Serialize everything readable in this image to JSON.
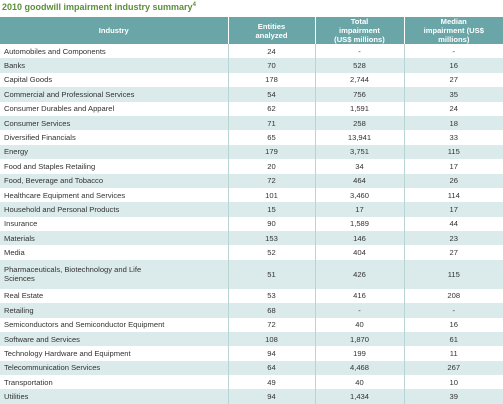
{
  "header": {
    "title": "2010 goodwill impairment industry summary",
    "footnote": "4"
  },
  "table": {
    "columns": [
      "Industry",
      "Entities analyzed",
      "Total impairment (US$ millions)",
      "Median impairment (US$ millions)"
    ],
    "rows": [
      [
        "Automobiles and Components",
        "24",
        "-",
        "-"
      ],
      [
        "Banks",
        "70",
        "528",
        "16"
      ],
      [
        "Capital Goods",
        "178",
        "2,744",
        "27"
      ],
      [
        "Commercial and Professional Services",
        "54",
        "756",
        "35"
      ],
      [
        "Consumer Durables and Apparel",
        "62",
        "1,591",
        "24"
      ],
      [
        "Consumer Services",
        "71",
        "258",
        "18"
      ],
      [
        "Diversified Financials",
        "65",
        "13,941",
        "33"
      ],
      [
        "Energy",
        "179",
        "3,751",
        "115"
      ],
      [
        "Food and Staples Retailing",
        "20",
        "34",
        "17"
      ],
      [
        "Food, Beverage and Tobacco",
        "72",
        "464",
        "26"
      ],
      [
        "Healthcare Equipment and Services",
        "101",
        "3,460",
        "114"
      ],
      [
        "Household and Personal Products",
        "15",
        "17",
        "17"
      ],
      [
        "Insurance",
        "90",
        "1,589",
        "44"
      ],
      [
        "Materials",
        "153",
        "146",
        "23"
      ],
      [
        "Media",
        "52",
        "404",
        "27"
      ],
      [
        "Pharmaceuticals, Biotechnology and Life Sciences",
        "51",
        "426",
        "115"
      ],
      [
        "Real Estate",
        "53",
        "416",
        "208"
      ],
      [
        "Retailing",
        "68",
        "-",
        "-"
      ],
      [
        "Semiconductors and Semiconductor Equipment",
        "72",
        "40",
        "16"
      ],
      [
        "Software and Services",
        "108",
        "1,870",
        "61"
      ],
      [
        "Technology Hardware and Equipment",
        "94",
        "199",
        "11"
      ],
      [
        "Telecommunication Services",
        "64",
        "4,468",
        "267"
      ],
      [
        "Transportation",
        "49",
        "40",
        "10"
      ],
      [
        "Utilities",
        "94",
        "1,434",
        "39"
      ]
    ]
  }
}
